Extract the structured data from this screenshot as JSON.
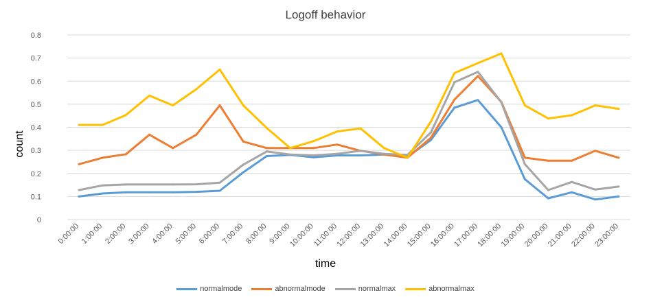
{
  "chart_data": {
    "type": "line",
    "title": "Logoff behavior",
    "xlabel": "time",
    "ylabel": "count",
    "ylim": [
      0,
      0.8
    ],
    "yticks": [
      "0",
      "0.1",
      "0.2",
      "0.3",
      "0.4",
      "0.5",
      "0.6",
      "0.7",
      "0.8"
    ],
    "grid": true,
    "legend_position": "bottom",
    "categories": [
      "0:00:00",
      "1:00:00",
      "2:00:00",
      "3:00:00",
      "4:00:00",
      "5:00:00",
      "6:00:00",
      "7:00:00",
      "8:00:00",
      "9:00:00",
      "10:00:00",
      "11:00:00",
      "12:00:00",
      "13:00:00",
      "14:00:00",
      "15:00:00",
      "16:00:00",
      "17:00:00",
      "18:00:00",
      "19:00:00",
      "20:00:00",
      "21:00:00",
      "22:00:00",
      "23:00:00"
    ],
    "series": [
      {
        "name": "normalmode",
        "color": "#5B9BD5",
        "values": [
          0.1,
          0.113,
          0.118,
          0.118,
          0.118,
          0.12,
          0.125,
          0.205,
          0.275,
          0.28,
          0.27,
          0.278,
          0.278,
          0.282,
          0.272,
          0.345,
          0.485,
          0.518,
          0.4,
          0.175,
          0.092,
          0.118,
          0.087,
          0.1
        ]
      },
      {
        "name": "abnormalmode",
        "color": "#ED7D31",
        "values": [
          0.24,
          0.268,
          0.283,
          0.368,
          0.31,
          0.368,
          0.495,
          0.338,
          0.31,
          0.31,
          0.31,
          0.325,
          0.298,
          0.282,
          0.268,
          0.355,
          0.52,
          0.622,
          0.51,
          0.268,
          0.255,
          0.255,
          0.298,
          0.268
        ]
      },
      {
        "name": "normalmax",
        "color": "#A5A5A5",
        "values": [
          0.128,
          0.148,
          0.152,
          0.152,
          0.152,
          0.153,
          0.16,
          0.238,
          0.295,
          0.282,
          0.278,
          0.285,
          0.298,
          0.285,
          0.28,
          0.378,
          0.595,
          0.64,
          0.508,
          0.24,
          0.128,
          0.163,
          0.13,
          0.143
        ]
      },
      {
        "name": "abnormalmax",
        "color": "#FFC000",
        "values": [
          0.41,
          0.41,
          0.453,
          0.537,
          0.495,
          0.565,
          0.65,
          0.495,
          0.397,
          0.31,
          0.34,
          0.382,
          0.395,
          0.31,
          0.268,
          0.425,
          0.635,
          0.678,
          0.72,
          0.495,
          0.438,
          0.452,
          0.495,
          0.48
        ]
      }
    ]
  }
}
